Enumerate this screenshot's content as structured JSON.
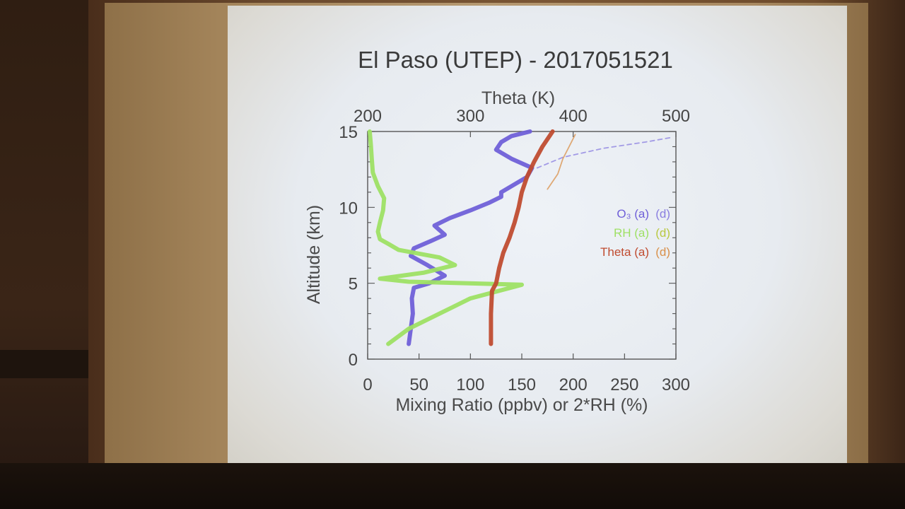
{
  "chart_data": {
    "type": "line",
    "title": "El Paso (UTEP) - 2017051521",
    "ylabel": "Altitude (km)",
    "xlabel": "Mixing Ratio (ppbv) or 2*RH (%)",
    "x2label": "Theta (K)",
    "ylim": [
      0,
      15
    ],
    "xlim": [
      0,
      300
    ],
    "x2lim": [
      200,
      500
    ],
    "yticks": [
      "0",
      "5",
      "10",
      "15"
    ],
    "xticks": [
      "0",
      "50",
      "100",
      "150",
      "200",
      "250",
      "300"
    ],
    "x2ticks": [
      "200",
      "300",
      "400",
      "500"
    ],
    "legend": {
      "placement": "center-right",
      "entries": [
        {
          "label": "O₃ (a)",
          "label_d": "(d)",
          "color": "#7060d8",
          "color_d": "#8a7ee0"
        },
        {
          "label": "RH (a)",
          "label_d": "(d)",
          "color": "#9ee064",
          "color_d": "#b9c840"
        },
        {
          "label": "Theta (a)",
          "label_d": "(d)",
          "color": "#c04c30",
          "color_d": "#d9904a"
        }
      ]
    },
    "series": [
      {
        "name": "O₃ (a)",
        "axis": "bottom",
        "color": "#7060d8",
        "points": [
          [
            40,
            1.0
          ],
          [
            42,
            2.0
          ],
          [
            44,
            3.0
          ],
          [
            43,
            4.0
          ],
          [
            45,
            4.7
          ],
          [
            60,
            5.0
          ],
          [
            75,
            5.5
          ],
          [
            58,
            6.2
          ],
          [
            42,
            6.8
          ],
          [
            45,
            7.3
          ],
          [
            62,
            7.8
          ],
          [
            75,
            8.2
          ],
          [
            65,
            8.8
          ],
          [
            80,
            9.3
          ],
          [
            100,
            9.8
          ],
          [
            118,
            10.3
          ],
          [
            130,
            10.7
          ],
          [
            130,
            11.0
          ],
          [
            140,
            11.4
          ],
          [
            155,
            12.0
          ],
          [
            160,
            12.6
          ],
          [
            140,
            13.2
          ],
          [
            125,
            13.8
          ],
          [
            130,
            14.3
          ],
          [
            140,
            14.7
          ],
          [
            158,
            15.0
          ]
        ]
      },
      {
        "name": "RH (a)",
        "axis": "bottom",
        "color": "#9ee064",
        "points": [
          [
            20,
            1.0
          ],
          [
            40,
            2.0
          ],
          [
            70,
            3.0
          ],
          [
            100,
            4.0
          ],
          [
            150,
            4.9
          ],
          [
            40,
            5.1
          ],
          [
            12,
            5.3
          ],
          [
            55,
            5.7
          ],
          [
            85,
            6.2
          ],
          [
            70,
            6.7
          ],
          [
            30,
            7.2
          ],
          [
            20,
            7.6
          ],
          [
            12,
            7.9
          ],
          [
            10,
            8.4
          ],
          [
            12,
            9.0
          ],
          [
            15,
            9.8
          ],
          [
            16,
            10.6
          ],
          [
            10,
            11.4
          ],
          [
            5,
            12.3
          ],
          [
            4,
            13.2
          ],
          [
            3,
            14.2
          ],
          [
            2,
            15.0
          ]
        ]
      },
      {
        "name": "Theta (a)",
        "axis": "top",
        "color": "#c04c30",
        "points": [
          [
            320,
            1.0
          ],
          [
            320,
            3.0
          ],
          [
            321,
            4.5
          ],
          [
            325,
            5.0
          ],
          [
            328,
            6.0
          ],
          [
            332,
            7.0
          ],
          [
            338,
            8.0
          ],
          [
            343,
            9.0
          ],
          [
            347,
            10.0
          ],
          [
            350,
            11.0
          ],
          [
            355,
            12.0
          ],
          [
            362,
            13.0
          ],
          [
            370,
            14.0
          ],
          [
            380,
            15.0
          ]
        ]
      },
      {
        "name": "O₃ (d)",
        "axis": "bottom",
        "color": "#8a7ee0",
        "points": [
          [
            165,
            12.6
          ],
          [
            190,
            13.3
          ],
          [
            230,
            13.9
          ],
          [
            270,
            14.3
          ],
          [
            295,
            14.6
          ]
        ]
      },
      {
        "name": "Theta (d)",
        "axis": "top",
        "color": "#d9904a",
        "points": [
          [
            375,
            11.2
          ],
          [
            385,
            12.2
          ],
          [
            390,
            13.2
          ],
          [
            396,
            14.0
          ],
          [
            402,
            14.8
          ]
        ]
      }
    ]
  }
}
